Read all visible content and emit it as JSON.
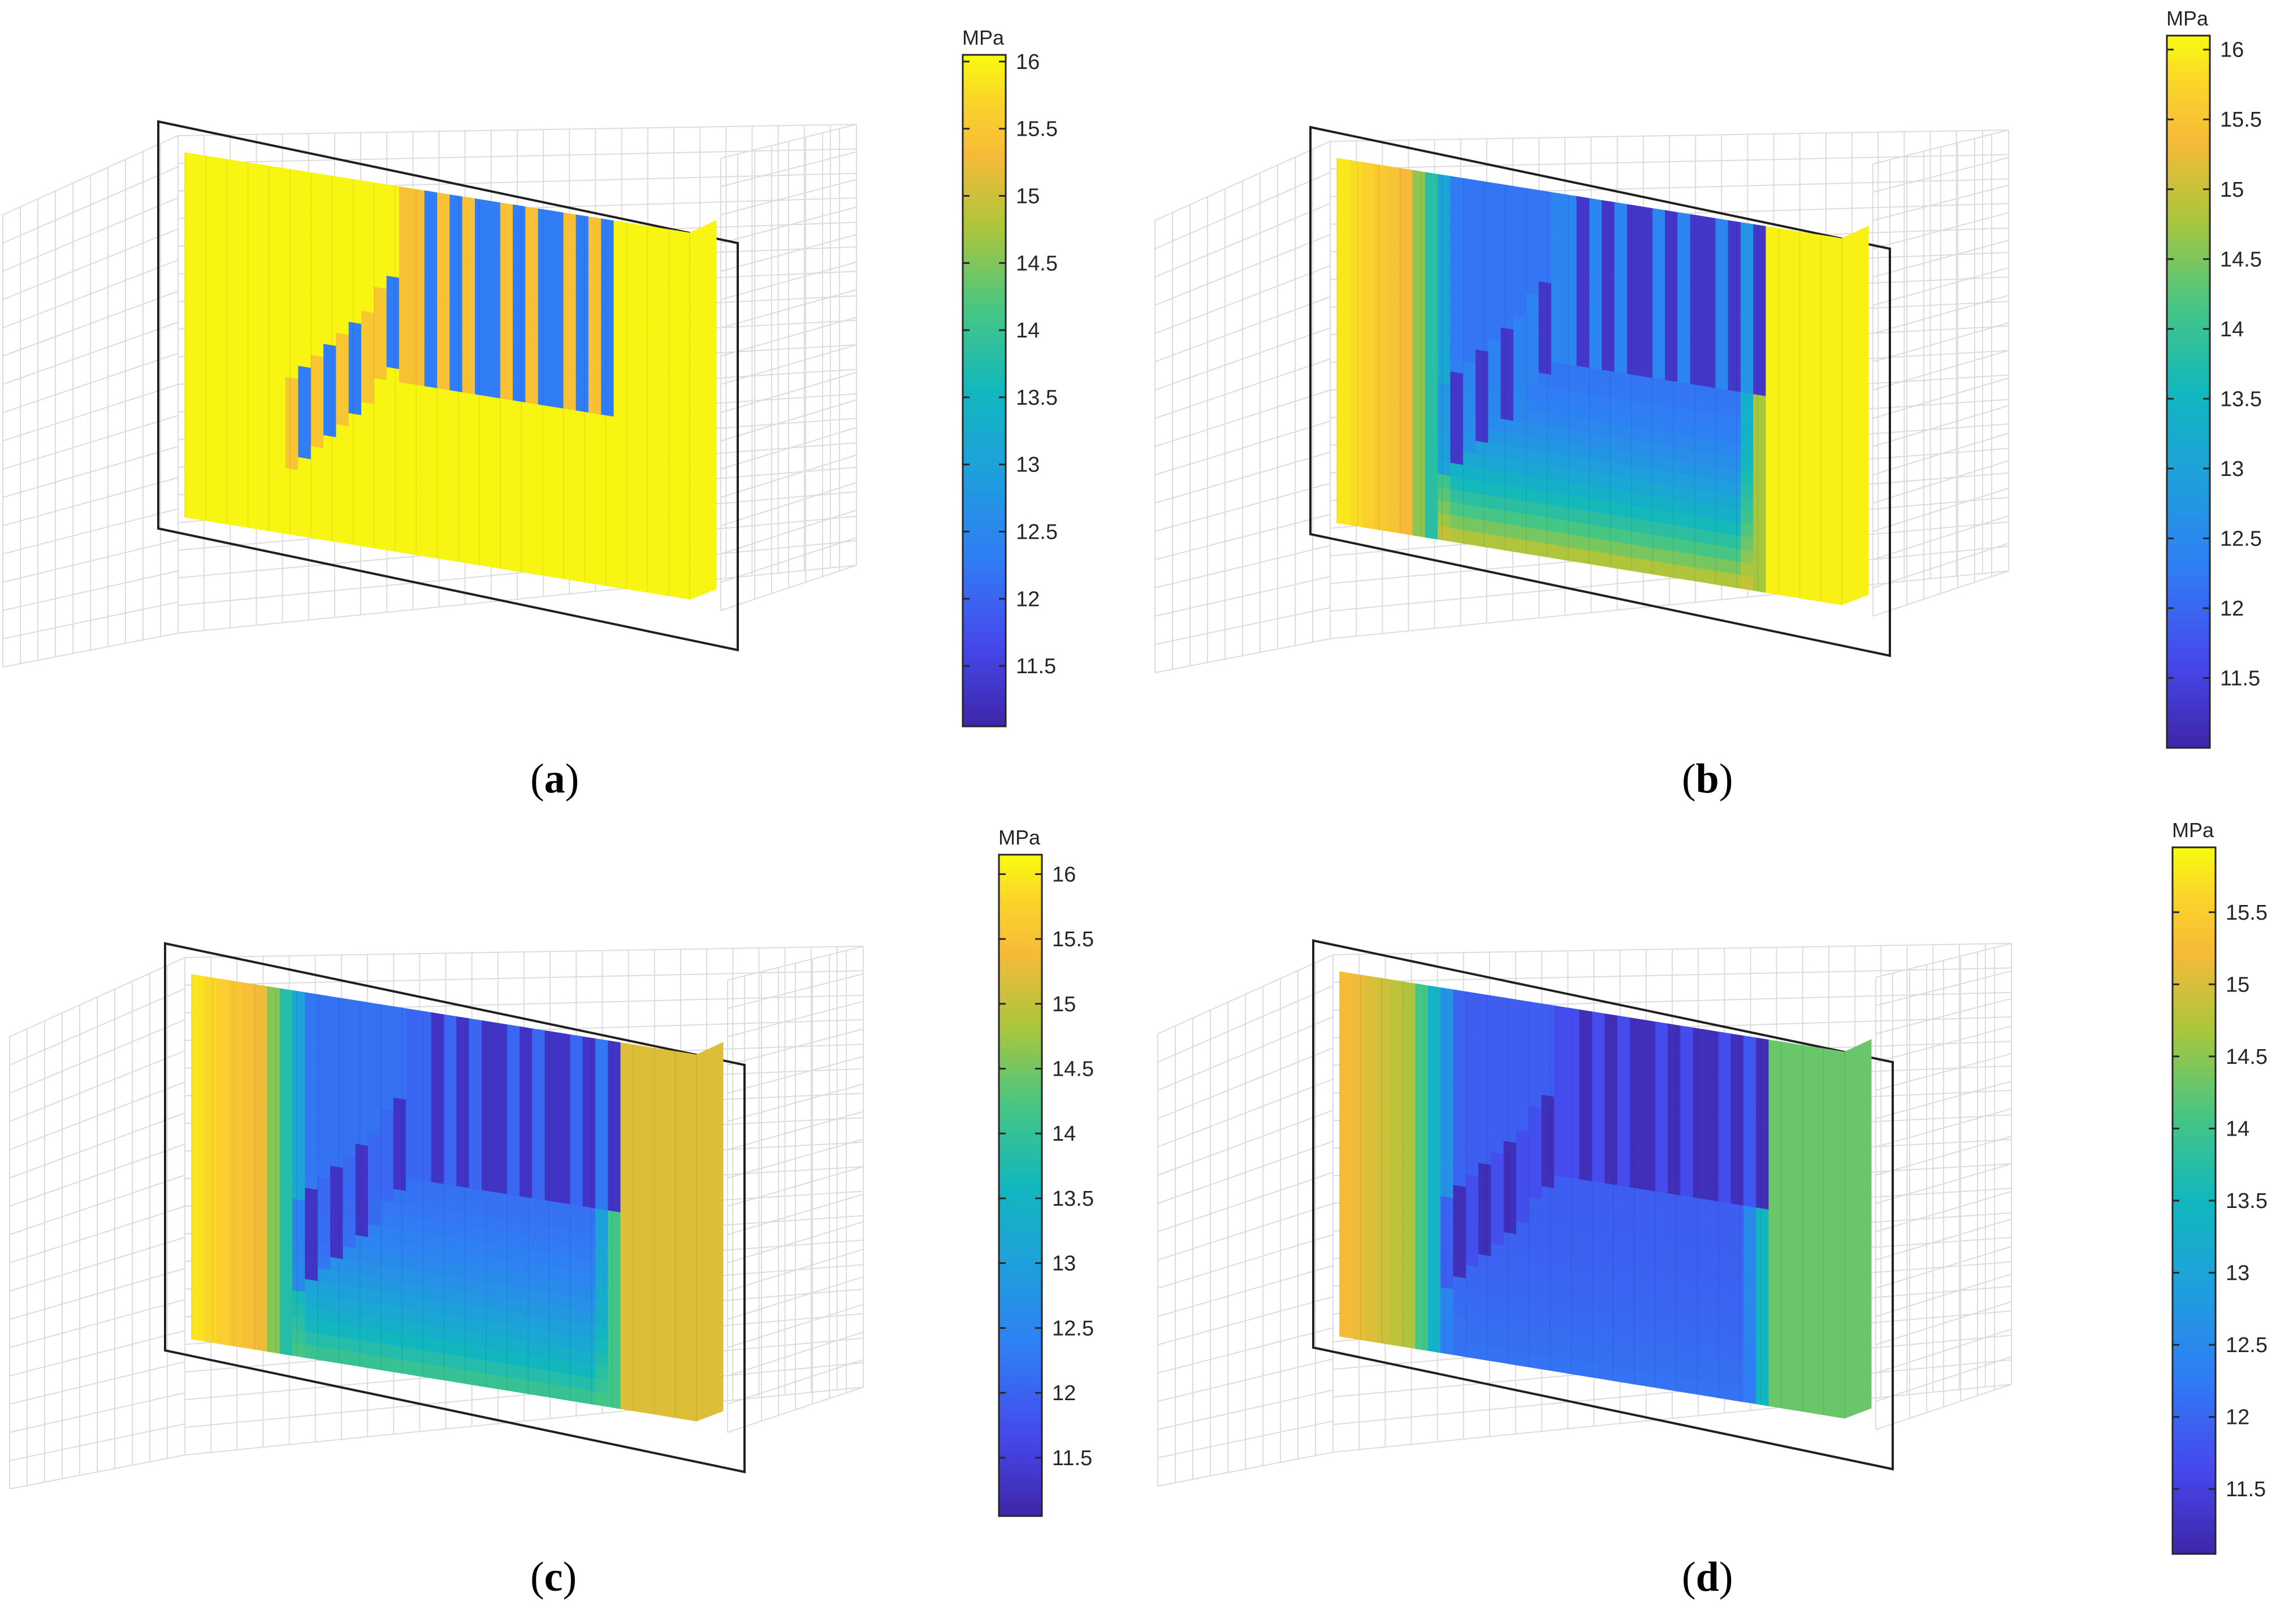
{
  "chart_data": [
    {
      "type": "heatmap",
      "panel": "a",
      "caption_letter": "a",
      "colorbar": {
        "unit": "MPa",
        "min": 11.05,
        "max": 16.05,
        "ticks": [
          11.5,
          12,
          12.5,
          13,
          13.5,
          14,
          14.5,
          15,
          15.5,
          16
        ]
      },
      "field": {
        "left_edge": 16.0,
        "right_edge": 16.0,
        "interior_min": 16.0,
        "notch_low": 12.3,
        "notch_high": 15.2,
        "notch_depth": 0.55,
        "bottom_interior": 16.0
      }
    },
    {
      "type": "heatmap",
      "panel": "b",
      "caption_letter": "b",
      "colorbar": {
        "unit": "MPa",
        "min": 11.0,
        "max": 16.1,
        "ticks": [
          11.5,
          12,
          12.5,
          13,
          13.5,
          14,
          14.5,
          15,
          15.5,
          16
        ]
      },
      "field": {
        "left_edge": 16.0,
        "right_edge": 16.0,
        "interior_min": 11.5,
        "notch_low": 11.3,
        "notch_high": 12.5,
        "notch_depth": 0.45,
        "bottom_interior": 15.3
      }
    },
    {
      "type": "heatmap",
      "panel": "c",
      "caption_letter": "c",
      "colorbar": {
        "unit": "MPa",
        "min": 11.05,
        "max": 16.15,
        "ticks": [
          11.5,
          12,
          12.5,
          13,
          13.5,
          14,
          14.5,
          15,
          15.5,
          16
        ]
      },
      "field": {
        "left_edge": 16.0,
        "right_edge": 15.2,
        "interior_min": 11.5,
        "notch_low": 11.3,
        "notch_high": 12.0,
        "notch_depth": 0.45,
        "bottom_interior": 14.4
      }
    },
    {
      "type": "heatmap",
      "panel": "d",
      "caption_letter": "d",
      "colorbar": {
        "unit": "MPa",
        "min": 11.05,
        "max": 15.95,
        "ticks": [
          11.5,
          12,
          12.5,
          13,
          13.5,
          14,
          14.5,
          15,
          15.5
        ]
      },
      "field": {
        "left_edge": 15.3,
        "right_edge": 14.3,
        "interior_min": 11.3,
        "notch_low": 11.2,
        "notch_high": 11.6,
        "notch_depth": 0.45,
        "bottom_interior": 12.2
      }
    }
  ]
}
